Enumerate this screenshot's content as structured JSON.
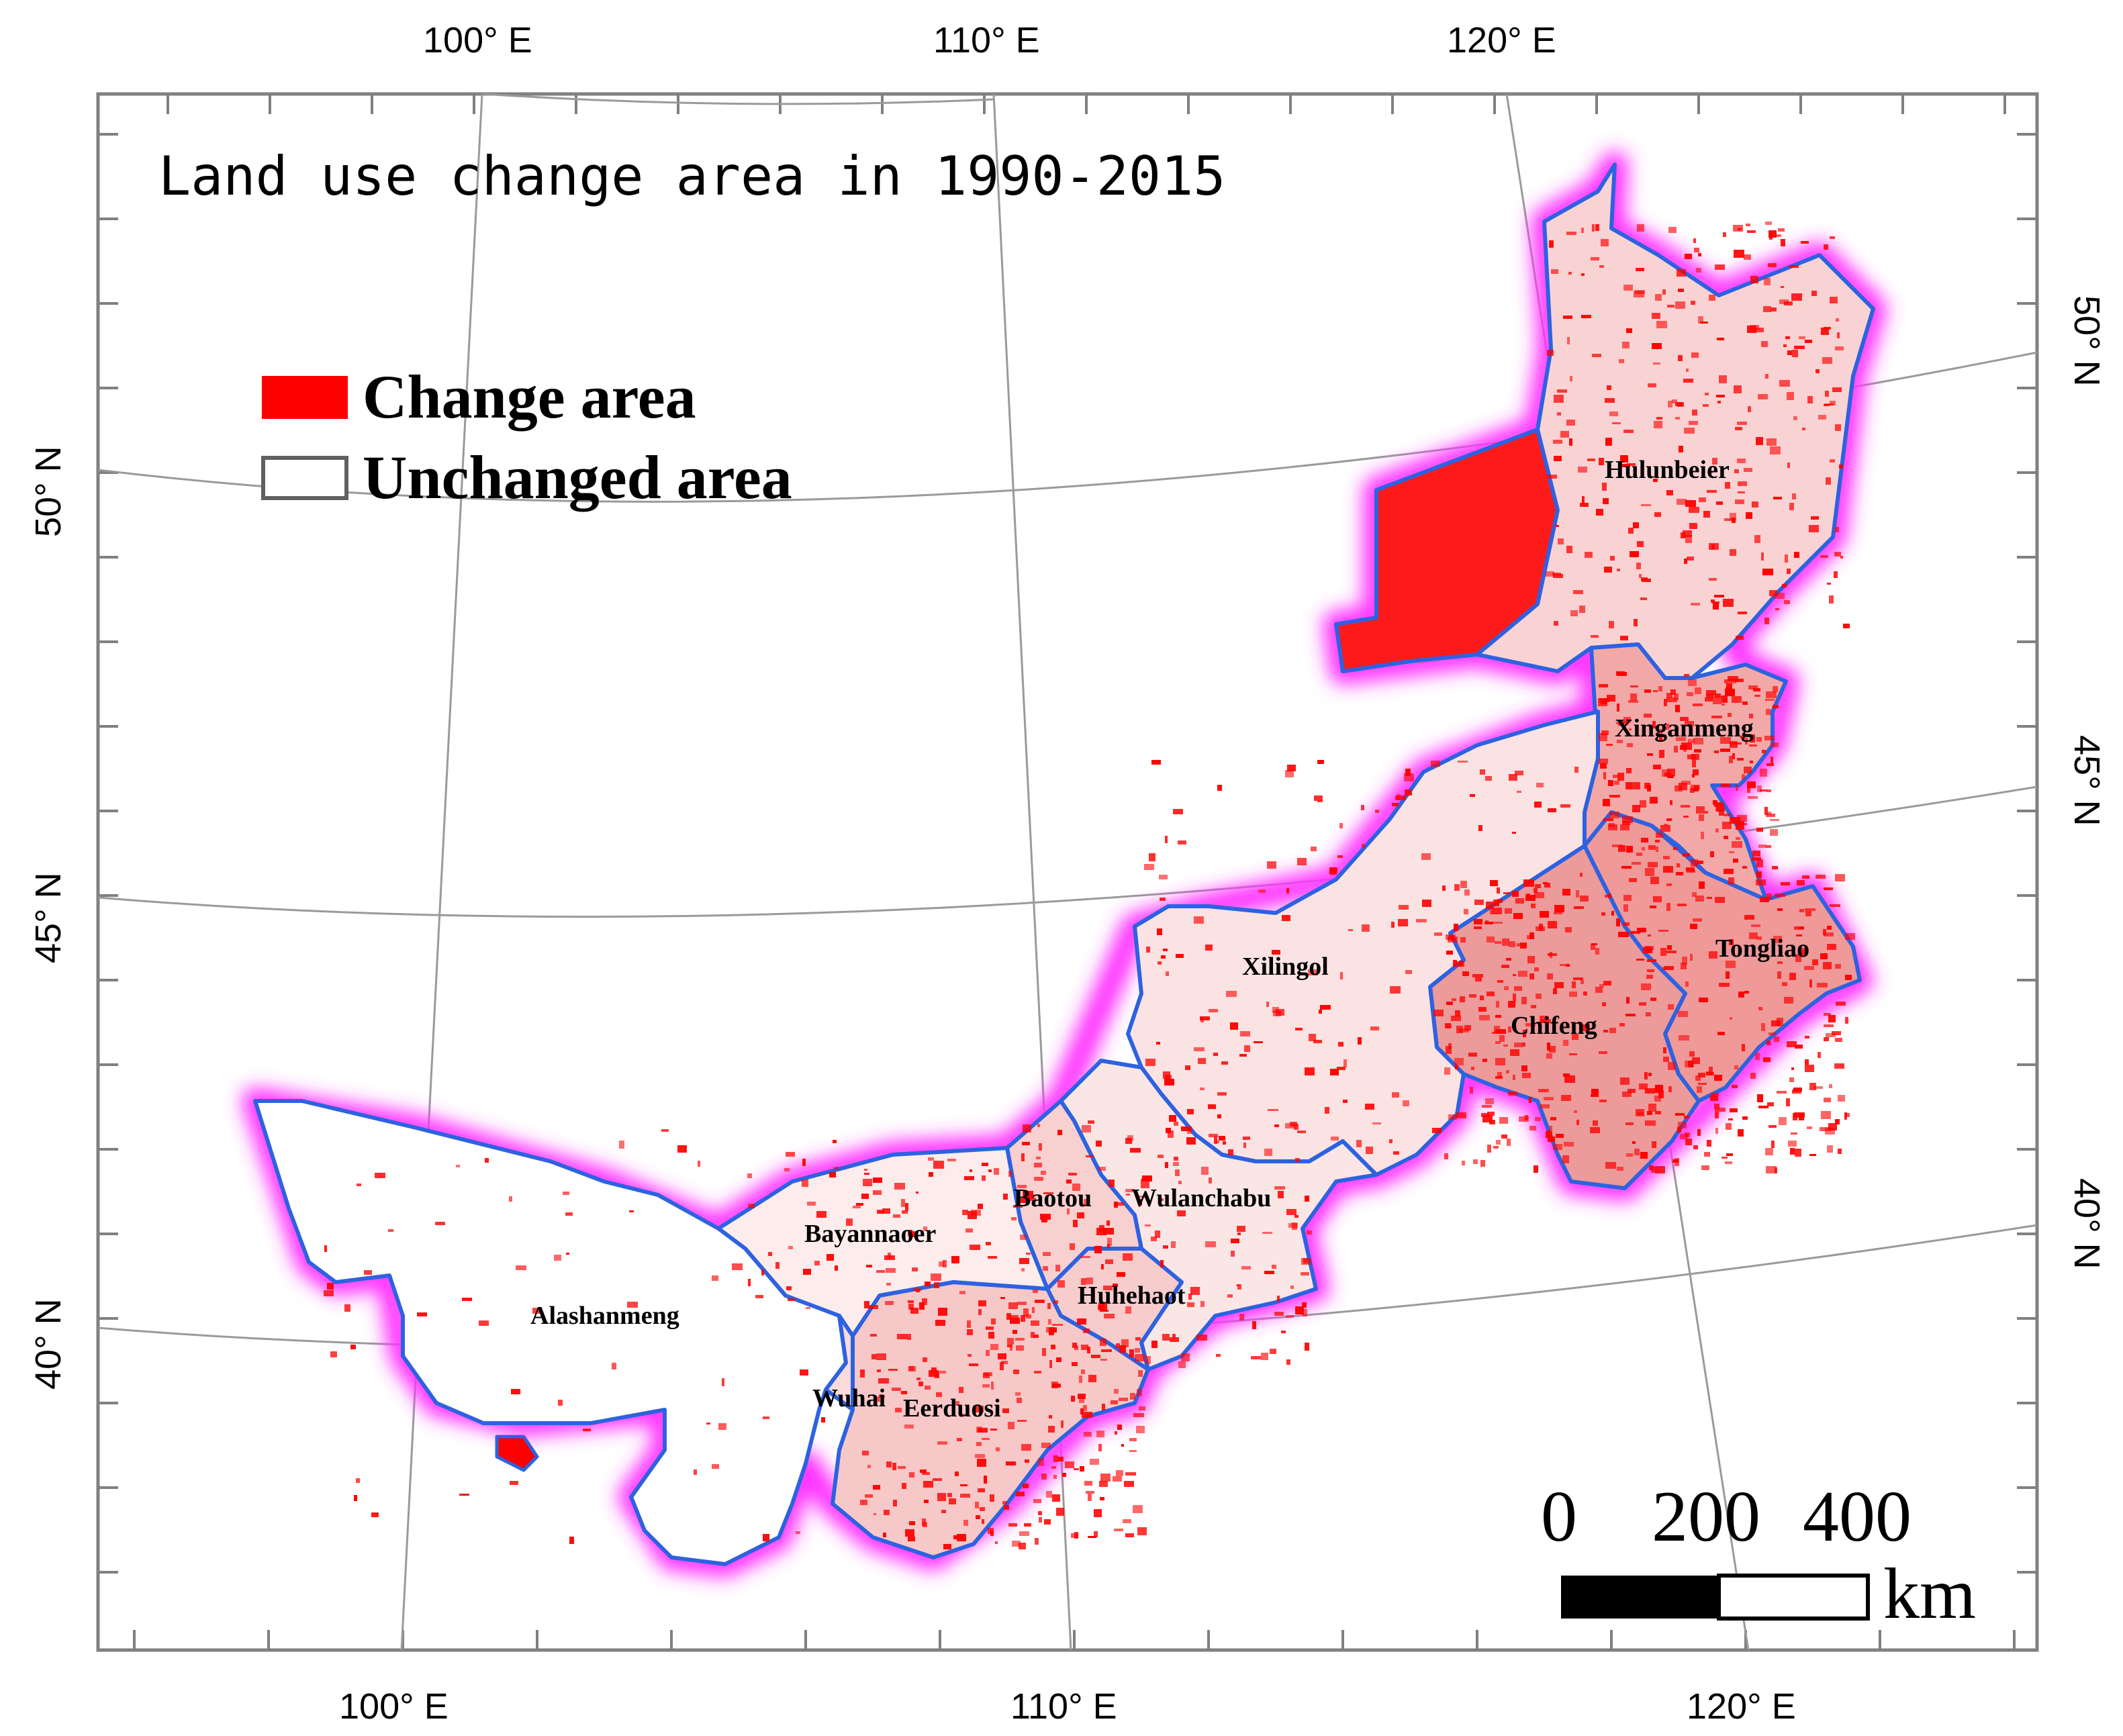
{
  "title": "Land use change area in 1990-2015",
  "legend": {
    "change_label": "Change area",
    "unchanged_label": "Unchanged area",
    "change_color": "#ff0000",
    "unchanged_color": "#ffffff"
  },
  "graticule": {
    "top_labels": [
      "100° E",
      "110° E",
      "120° E"
    ],
    "bottom_labels": [
      "100° E",
      "110° E",
      "120° E"
    ],
    "left_labels": [
      "50° N",
      "45° N",
      "40° N"
    ],
    "right_labels": [
      "50° N",
      "45° N",
      "40° N"
    ]
  },
  "regions": [
    "Hulunbeier",
    "Xinganmeng",
    "Tongliao",
    "Chifeng",
    "Xilingol",
    "Wulanchabu",
    "Baotou",
    "Huhehaot",
    "Bayannaoer",
    "Alashanmeng",
    "Wuhai",
    "Eerduosi"
  ],
  "scale_bar": {
    "ticks": [
      "0",
      "200",
      "400"
    ],
    "unit": "km"
  },
  "colors": {
    "boundary": "#2d62e0",
    "glow": "#ff33ff",
    "frame": "#808080"
  }
}
